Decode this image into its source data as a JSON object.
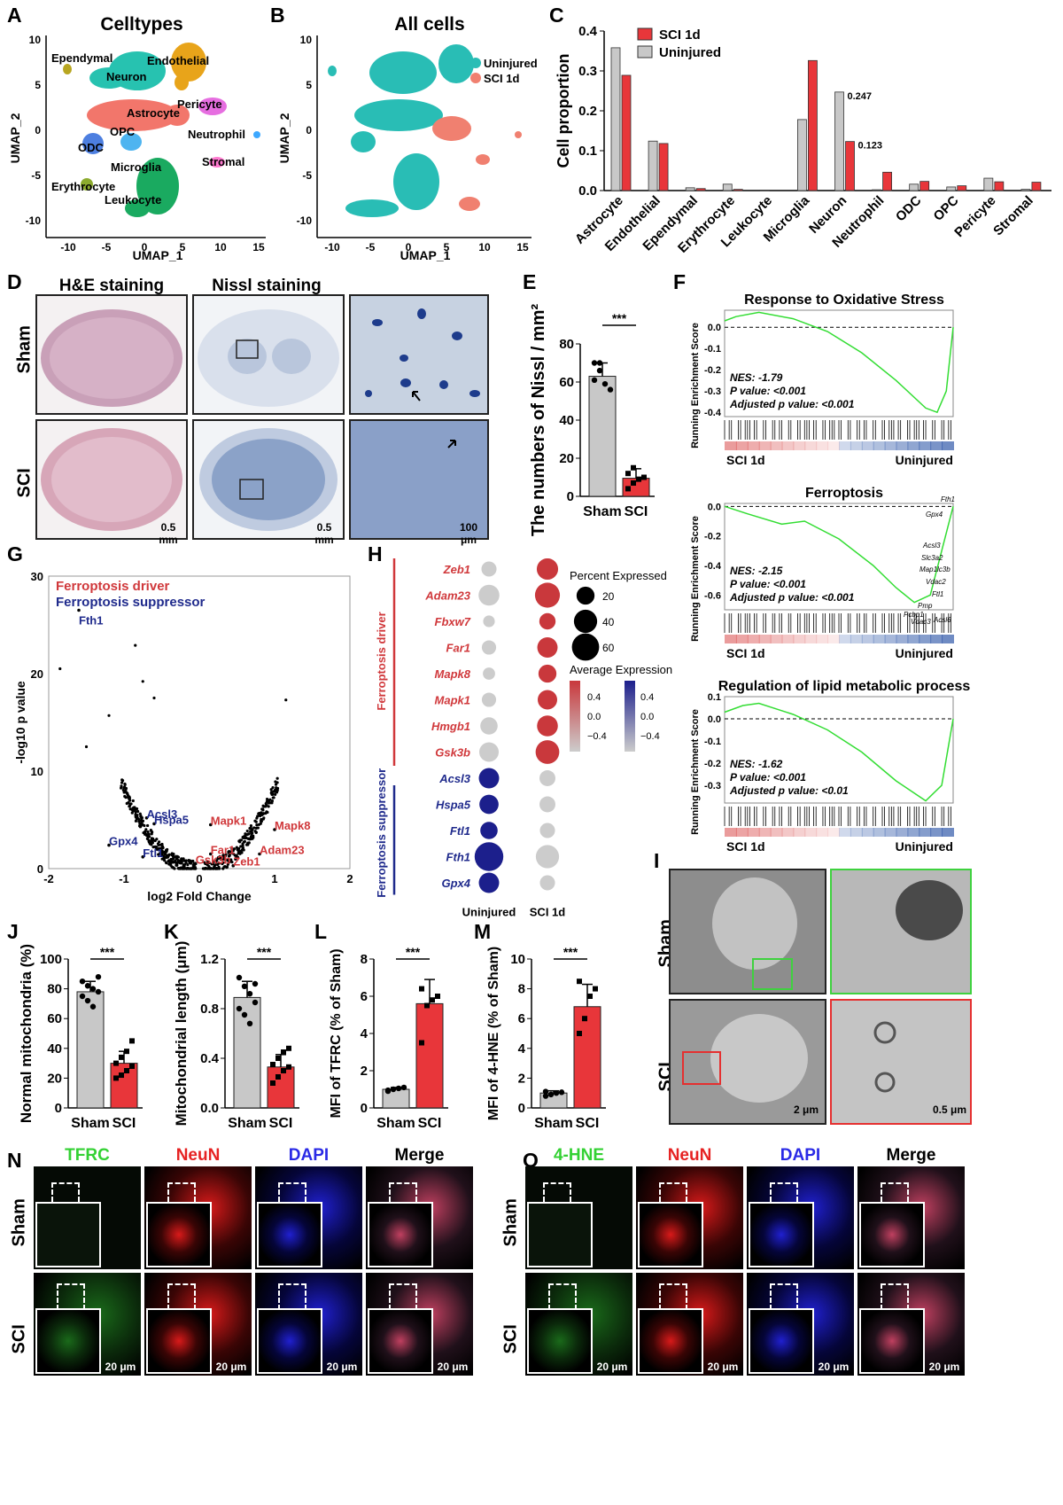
{
  "panels": {
    "A": {
      "letter": "A",
      "title": "Celltypes",
      "xlabel": "UMAP_1",
      "ylabel": "UMAP_2",
      "xticks": [
        "-10",
        "-5",
        "0",
        "5",
        "10",
        "15"
      ],
      "yticks": [
        "10",
        "5",
        "0",
        "-5",
        "-10"
      ],
      "labels": [
        "Ependymal",
        "Endothelial",
        "Neuron",
        "Pericyte",
        "Astrocyte",
        "OPC",
        "Neutrophil",
        "ODC",
        "Stromal",
        "Microglia",
        "Erythrocyte",
        "Leukocyte"
      ]
    },
    "B": {
      "letter": "B",
      "title": "All cells",
      "xlabel": "UMAP_1",
      "ylabel": "UMAP_2",
      "xticks": [
        "-10",
        "-5",
        "0",
        "5",
        "10",
        "15"
      ],
      "yticks": [
        "10",
        "5",
        "0",
        "-5",
        "-10"
      ],
      "legend": [
        "Uninjured",
        "SCI 1d"
      ]
    },
    "C": {
      "letter": "C"
    },
    "D": {
      "letter": "D",
      "col1": "H&E staining",
      "col2": "Nissl staining",
      "row1": "Sham",
      "row2": "SCI",
      "scale1": "0.5 mm",
      "scale2": "0.5 mm",
      "scale3": "100 μm"
    },
    "E": {
      "letter": "E"
    },
    "F": {
      "letter": "F",
      "ylabel": "Running Enrichment Score",
      "left": "SCI 1d",
      "right": "Uninjured",
      "plots": [
        {
          "title": "Response to Oxidative Stress",
          "nes": "NES: -1.79",
          "p": "P value: <0.001",
          "adj": "Adjusted p value: <0.001",
          "yticks": [
            "0.0",
            "-0.1",
            "-0.2",
            "-0.3",
            "-0.4"
          ]
        },
        {
          "title": "Ferroptosis",
          "nes": "NES: -2.15",
          "p": "P value: <0.001",
          "adj": "Adjusted p value: <0.001",
          "yticks": [
            "0.0",
            "-0.2",
            "-0.4",
            "-0.6"
          ],
          "genes": [
            "Fth1",
            "Gpx4",
            "Acsl3",
            "Slc3a2",
            "Map1lc3b",
            "Vdac2",
            "Ftl1",
            "Pmp",
            "Pcbp1",
            "Vdac3",
            "Acsl6"
          ]
        },
        {
          "title": "Regulation of lipid metabolic process",
          "nes": "NES: -1.62",
          "p": "P value: <0.001",
          "adj": "Adjusted p value: <0.01",
          "yticks": [
            "0.1",
            "0.0",
            "-0.1",
            "-0.2",
            "-0.3"
          ]
        }
      ]
    },
    "G": {
      "letter": "G",
      "legend_driver": "Ferroptosis driver",
      "legend_suppressor": "Ferroptosis suppressor"
    },
    "H": {
      "letter": "H",
      "driver_label": "Ferroptosis driver",
      "suppressor_label": "Ferroptosis suppressor",
      "pct_title": "Percent Expressed",
      "pct_sizes": [
        "20",
        "40",
        "60"
      ],
      "avg_title": "Average Expression",
      "avg_ticks": [
        "0.4",
        "0.0",
        "−0.4"
      ]
    },
    "I": {
      "letter": "I",
      "row1": "Sham",
      "row2": "SCI",
      "scale1": "2 μm",
      "scale2": "0.5 μm"
    },
    "J": {
      "letter": "J"
    },
    "K": {
      "letter": "K"
    },
    "L": {
      "letter": "L"
    },
    "M": {
      "letter": "M"
    },
    "N": {
      "letter": "N",
      "headers": [
        "TFRC",
        "NeuN",
        "DAPI",
        "Merge"
      ],
      "rows": [
        "Sham",
        "SCI"
      ],
      "scale": "20 μm"
    },
    "O": {
      "letter": "O",
      "headers": [
        "4-HNE",
        "NeuN",
        "DAPI",
        "Merge"
      ],
      "rows": [
        "Sham",
        "SCI"
      ],
      "scale": "20 μm"
    }
  },
  "colors": {
    "sci": "#e8363a",
    "uninjured": "#c8c8c8",
    "teal": "#2bbcb5",
    "salmon": "#f08070",
    "driver": "#d0383b",
    "suppressor": "#1f2a8c",
    "gsea": "#33dd33"
  },
  "chart_data": [
    {
      "id": "C",
      "type": "bar",
      "ylabel": "Cell proportion",
      "ylim": [
        0,
        0.4
      ],
      "yticks": [
        "0.0",
        "0.1",
        "0.2",
        "0.3",
        "0.4"
      ],
      "categories": [
        "Astrocyte",
        "Endothelial",
        "Ependymal",
        "Erythrocyte",
        "Leukocyte",
        "Microglia",
        "Neuron",
        "Neutrophil",
        "ODC",
        "OPC",
        "Pericyte",
        "Stromal"
      ],
      "series": [
        {
          "name": "SCI 1d",
          "values": [
            0.289,
            0.118,
            0.005,
            0.003,
            0.0,
            0.326,
            0.123,
            0.046,
            0.023,
            0.012,
            0.022,
            0.021
          ]
        },
        {
          "name": "Uninjured",
          "values": [
            0.358,
            0.124,
            0.007,
            0.016,
            0.001,
            0.178,
            0.247,
            0.002,
            0.016,
            0.009,
            0.031,
            0.003
          ]
        }
      ],
      "annotations": [
        "0.247",
        "0.123"
      ]
    },
    {
      "id": "E",
      "type": "bar",
      "ylabel": "The numbers of Nissl / mm²",
      "ylim": [
        0,
        80
      ],
      "yticks": [
        "0",
        "20",
        "40",
        "60",
        "80"
      ],
      "categories": [
        "Sham",
        "SCI"
      ],
      "values": [
        63,
        9.5
      ],
      "errors": [
        7,
        5
      ],
      "signif": "***",
      "points": [
        [
          70,
          66,
          59,
          56,
          61,
          70
        ],
        [
          4,
          7,
          9,
          10,
          12,
          15
        ]
      ]
    },
    {
      "id": "G",
      "type": "scatter",
      "xlabel": "log2 Fold Change",
      "ylabel": "-log10 p value",
      "xlim": [
        -2,
        2
      ],
      "ylim": [
        0,
        30
      ],
      "xticks": [
        "-2",
        "-1",
        "0",
        "1",
        "2"
      ],
      "yticks": [
        "0",
        "10",
        "20",
        "30"
      ],
      "labeled": [
        {
          "name": "Fth1",
          "x": -1.6,
          "y": 26.5,
          "group": "suppressor"
        },
        {
          "name": "Acsl3",
          "x": -0.7,
          "y": 5.2,
          "group": "suppressor"
        },
        {
          "name": "Hspa5",
          "x": -0.6,
          "y": 4.6,
          "group": "suppressor"
        },
        {
          "name": "Gpx4",
          "x": -1.2,
          "y": 2.4,
          "group": "suppressor"
        },
        {
          "name": "Ftl1",
          "x": -0.75,
          "y": 1.2,
          "group": "suppressor"
        },
        {
          "name": "Mapk1",
          "x": 0.15,
          "y": 4.5,
          "group": "driver"
        },
        {
          "name": "Mapk8",
          "x": 1.0,
          "y": 4.0,
          "group": "driver"
        },
        {
          "name": "Far1",
          "x": 0.15,
          "y": 1.5,
          "group": "driver"
        },
        {
          "name": "Adam23",
          "x": 0.8,
          "y": 1.5,
          "group": "driver"
        },
        {
          "name": "Gsk3b",
          "x": -0.05,
          "y": 0.5,
          "group": "driver"
        },
        {
          "name": "Zeb1",
          "x": 0.45,
          "y": 0.3,
          "group": "driver"
        }
      ]
    },
    {
      "id": "H",
      "type": "dot",
      "columns": [
        "Uninjured",
        "SCI 1d"
      ],
      "genes": [
        {
          "name": "Zeb1",
          "group": "driver",
          "pct": [
            12,
            32
          ],
          "avg": [
            -0.4,
            0.45
          ]
        },
        {
          "name": "Adam23",
          "group": "driver",
          "pct": [
            30,
            48
          ],
          "avg": [
            -0.45,
            0.45
          ]
        },
        {
          "name": "Fbxw7",
          "group": "driver",
          "pct": [
            5,
            15
          ],
          "avg": [
            -0.3,
            0.35
          ]
        },
        {
          "name": "Far1",
          "group": "driver",
          "pct": [
            10,
            28
          ],
          "avg": [
            -0.35,
            0.4
          ]
        },
        {
          "name": "Mapk8",
          "group": "driver",
          "pct": [
            6,
            20
          ],
          "avg": [
            -0.3,
            0.35
          ]
        },
        {
          "name": "Mapk1",
          "group": "driver",
          "pct": [
            10,
            25
          ],
          "avg": [
            -0.35,
            0.4
          ]
        },
        {
          "name": "Hmgb1",
          "group": "driver",
          "pct": [
            18,
            30
          ],
          "avg": [
            -0.4,
            0.4
          ]
        },
        {
          "name": "Gsk3b",
          "group": "driver",
          "pct": [
            25,
            42
          ],
          "avg": [
            -0.4,
            0.45
          ]
        },
        {
          "name": "Acsl3",
          "group": "suppressor",
          "pct": [
            28,
            14
          ],
          "avg": [
            0.45,
            -0.35
          ]
        },
        {
          "name": "Hspa5",
          "group": "suppressor",
          "pct": [
            24,
            14
          ],
          "avg": [
            0.45,
            -0.35
          ]
        },
        {
          "name": "Ftl1",
          "group": "suppressor",
          "pct": [
            18,
            12
          ],
          "avg": [
            0.45,
            -0.35
          ]
        },
        {
          "name": "Fth1",
          "group": "suppressor",
          "pct": [
            68,
            40
          ],
          "avg": [
            0.45,
            -0.4
          ]
        },
        {
          "name": "Gpx4",
          "group": "suppressor",
          "pct": [
            28,
            12
          ],
          "avg": [
            0.45,
            -0.35
          ]
        }
      ]
    },
    {
      "id": "J",
      "type": "bar",
      "ylabel": "Normal mitochondria (%)",
      "ylim": [
        0,
        100
      ],
      "yticks": [
        "0",
        "20",
        "40",
        "60",
        "80",
        "100"
      ],
      "categories": [
        "Sham",
        "SCI"
      ],
      "values": [
        78,
        30
      ],
      "errors": [
        7,
        8
      ],
      "signif": "***",
      "points": [
        [
          85,
          82,
          80,
          78,
          75,
          72,
          68,
          88
        ],
        [
          20,
          22,
          25,
          28,
          30,
          34,
          38,
          45
        ]
      ]
    },
    {
      "id": "K",
      "type": "bar",
      "ylabel": "Mitochondrial length (μm)",
      "ylim": [
        0,
        1.2
      ],
      "yticks": [
        "0.0",
        "0.4",
        "0.8",
        "1.2"
      ],
      "categories": [
        "Sham",
        "SCI"
      ],
      "values": [
        0.89,
        0.33
      ],
      "errors": [
        0.13,
        0.1
      ],
      "signif": "***",
      "points": [
        [
          1.05,
          0.98,
          0.92,
          0.85,
          0.8,
          0.75,
          0.68,
          1.0
        ],
        [
          0.2,
          0.25,
          0.3,
          0.33,
          0.35,
          0.4,
          0.45,
          0.48
        ]
      ]
    },
    {
      "id": "L",
      "type": "bar",
      "ylabel": "MFI of TFRC (% of Sham)",
      "ylim": [
        0,
        8
      ],
      "yticks": [
        "0",
        "2",
        "4",
        "6",
        "8"
      ],
      "categories": [
        "Sham",
        "SCI"
      ],
      "values": [
        1.0,
        5.6
      ],
      "errors": [
        0.1,
        1.3
      ],
      "signif": "***",
      "points": [
        [
          0.9,
          1.0,
          1.05,
          1.1,
          0.95
        ],
        [
          3.5,
          5.5,
          5.8,
          6.0,
          6.4
        ]
      ]
    },
    {
      "id": "M",
      "type": "bar",
      "ylabel": "MFI of 4-HNE (% of Sham)",
      "ylim": [
        0,
        10
      ],
      "yticks": [
        "0",
        "2",
        "4",
        "6",
        "8",
        "10"
      ],
      "categories": [
        "Sham",
        "SCI"
      ],
      "values": [
        1.0,
        6.8
      ],
      "errors": [
        0.15,
        1.5
      ],
      "signif": "***",
      "points": [
        [
          0.8,
          0.9,
          1.0,
          1.05,
          1.1
        ],
        [
          5.0,
          6.0,
          7.5,
          8.0,
          8.5
        ]
      ]
    }
  ]
}
